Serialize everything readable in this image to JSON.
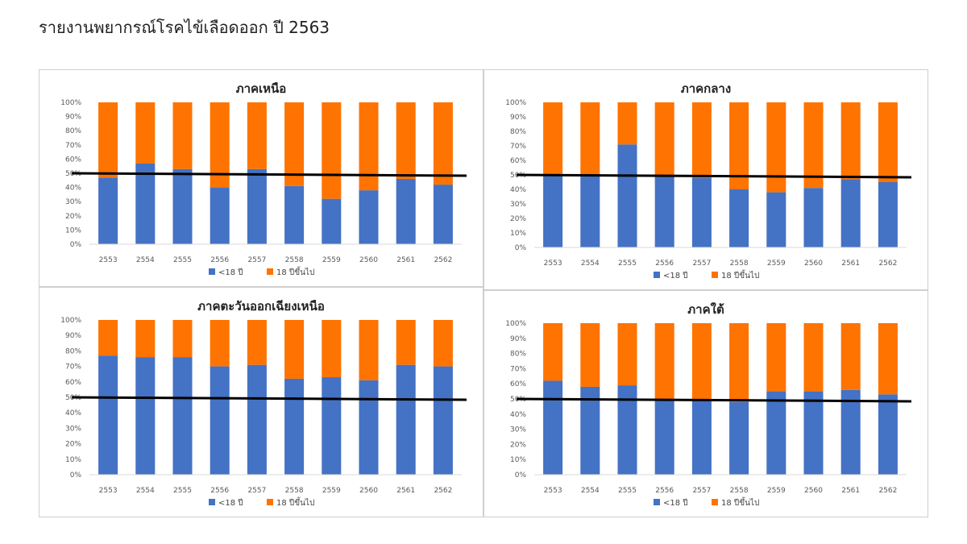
{
  "page": {
    "title": "รายงานพยากรณ์โรคไข้เลือดออก ปี 2563"
  },
  "colors": {
    "under18": "#4472c4",
    "over18": "#ff7300",
    "reference_line": "#000000"
  },
  "chart_data": [
    {
      "type": "bar",
      "stacked": "percent",
      "title": "ภาคเหนือ",
      "categories": [
        "2553",
        "2554",
        "2555",
        "2556",
        "2557",
        "2558",
        "2559",
        "2560",
        "2561",
        "2562"
      ],
      "series": [
        {
          "name": "<18 ปี",
          "values": [
            47,
            57,
            53,
            40,
            53,
            41,
            32,
            38,
            46,
            42
          ]
        },
        {
          "name": "18 ปีขึ้นไป",
          "values": [
            53,
            43,
            47,
            60,
            47,
            59,
            68,
            62,
            54,
            58
          ]
        }
      ],
      "yticks": [
        "0%",
        "10%",
        "20%",
        "30%",
        "40%",
        "50%",
        "60%",
        "70%",
        "80%",
        "90%",
        "100%"
      ],
      "ylim": [
        0,
        100
      ],
      "reference_line": 50,
      "legend": "bottom"
    },
    {
      "type": "bar",
      "stacked": "percent",
      "title": "ภาคกลาง",
      "categories": [
        "2553",
        "2554",
        "2555",
        "2556",
        "2557",
        "2558",
        "2559",
        "2560",
        "2561",
        "2562"
      ],
      "series": [
        {
          "name": "<18 ปี",
          "values": [
            50,
            50,
            71,
            49,
            48,
            40,
            38,
            41,
            47,
            45
          ]
        },
        {
          "name": "18 ปีขึ้นไป",
          "values": [
            50,
            50,
            29,
            51,
            52,
            60,
            62,
            59,
            53,
            55
          ]
        }
      ],
      "yticks": [
        "0%",
        "10%",
        "20%",
        "30%",
        "40%",
        "50%",
        "60%",
        "70%",
        "80%",
        "90%",
        "100%"
      ],
      "ylim": [
        0,
        100
      ],
      "reference_line": 50,
      "legend": "bottom"
    },
    {
      "type": "bar",
      "stacked": "percent",
      "title": "ภาคตะวันออกเฉียงเหนือ",
      "categories": [
        "2553",
        "2554",
        "2555",
        "2556",
        "2557",
        "2558",
        "2559",
        "2560",
        "2561",
        "2562"
      ],
      "series": [
        {
          "name": "<18 ปี",
          "values": [
            77,
            76,
            76,
            70,
            71,
            62,
            63,
            61,
            71,
            70
          ]
        },
        {
          "name": "18 ปีขึ้นไป",
          "values": [
            23,
            24,
            24,
            30,
            29,
            38,
            37,
            39,
            29,
            30
          ]
        }
      ],
      "yticks": [
        "0%",
        "10%",
        "20%",
        "30%",
        "40%",
        "50%",
        "60%",
        "70%",
        "80%",
        "90%",
        "100%"
      ],
      "ylim": [
        0,
        100
      ],
      "reference_line": 50,
      "legend": "bottom"
    },
    {
      "type": "bar",
      "stacked": "percent",
      "title": "ภาคใต้",
      "categories": [
        "2553",
        "2554",
        "2555",
        "2556",
        "2557",
        "2558",
        "2559",
        "2560",
        "2561",
        "2562"
      ],
      "series": [
        {
          "name": "<18 ปี",
          "values": [
            62,
            58,
            59,
            50,
            50,
            48,
            55,
            55,
            56,
            53
          ]
        },
        {
          "name": "18 ปีขึ้นไป",
          "values": [
            38,
            42,
            41,
            50,
            50,
            52,
            45,
            45,
            44,
            47
          ]
        }
      ],
      "yticks": [
        "0%",
        "10%",
        "20%",
        "30%",
        "40%",
        "50%",
        "60%",
        "70%",
        "80%",
        "90%",
        "100%"
      ],
      "ylim": [
        0,
        100
      ],
      "reference_line": 50,
      "legend": "bottom"
    }
  ]
}
